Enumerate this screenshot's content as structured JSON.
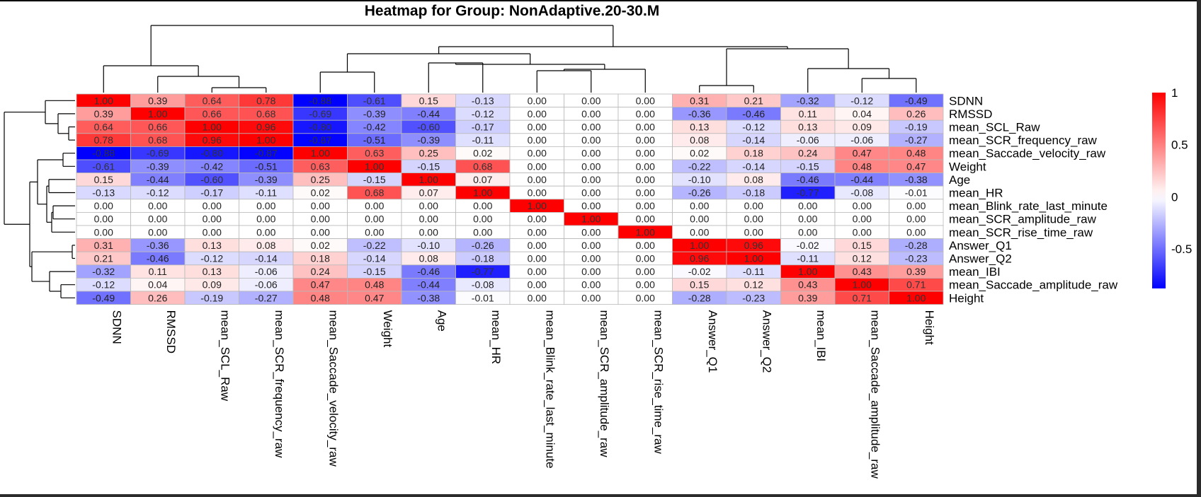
{
  "title": "Heatmap for Group: NonAdaptive.20-30.M",
  "chart_data": {
    "type": "heatmap",
    "title": "Heatmap for Group: NonAdaptive.20-30.M",
    "columns": [
      "SDNN",
      "RMSSD",
      "mean_SCL_Raw",
      "mean_SCR_frequency_raw",
      "mean_Saccade_velocity_raw",
      "Weight",
      "Age",
      "mean_HR",
      "mean_Blink_rate_last_minute",
      "mean_SCR_amplitude_raw",
      "mean_SCR_rise_time_raw",
      "Answer_Q1",
      "Answer_Q2",
      "mean_IBI",
      "mean_Saccade_amplitude_raw",
      "Height"
    ],
    "rows": [
      "SDNN",
      "RMSSD",
      "mean_SCL_Raw",
      "mean_SCR_frequency_raw",
      "mean_Saccade_velocity_raw",
      "Weight",
      "Age",
      "mean_HR",
      "mean_Blink_rate_last_minute",
      "mean_SCR_amplitude_raw",
      "mean_SCR_rise_time_raw",
      "Answer_Q1",
      "Answer_Q2",
      "mean_IBI",
      "mean_Saccade_amplitude_raw",
      "Height"
    ],
    "values": [
      [
        "1.00",
        "0.39",
        "0.64",
        "0.78",
        "-0.88",
        "-0.61",
        "0.15",
        "-0.13",
        "0.00",
        "0.00",
        "0.00",
        "0.31",
        "0.21",
        "-0.32",
        "-0.12",
        "-0.49"
      ],
      [
        "0.39",
        "1.00",
        "0.66",
        "0.68",
        "-0.69",
        "-0.39",
        "-0.44",
        "-0.12",
        "0.00",
        "0.00",
        "0.00",
        "-0.36",
        "-0.46",
        "0.11",
        "0.04",
        "0.26"
      ],
      [
        "0.64",
        "0.66",
        "1.00",
        "0.96",
        "-0.80",
        "-0.42",
        "-0.60",
        "-0.17",
        "0.00",
        "0.00",
        "0.00",
        "0.13",
        "-0.12",
        "0.13",
        "0.09",
        "-0.19"
      ],
      [
        "0.78",
        "0.68",
        "0.96",
        "1.00",
        "-0.87",
        "-0.51",
        "-0.39",
        "-0.11",
        "0.00",
        "0.00",
        "0.00",
        "0.08",
        "-0.14",
        "-0.06",
        "-0.06",
        "-0.27"
      ],
      [
        "-0.88",
        "-0.69",
        "-0.80",
        "-0.87",
        "1.00",
        "0.63",
        "0.25",
        "0.02",
        "0.00",
        "0.00",
        "0.00",
        "0.02",
        "0.18",
        "0.24",
        "0.47",
        "0.48"
      ],
      [
        "-0.61",
        "-0.39",
        "-0.42",
        "-0.51",
        "0.63",
        "1.00",
        "-0.15",
        "0.68",
        "0.00",
        "0.00",
        "0.00",
        "-0.22",
        "-0.14",
        "-0.15",
        "0.48",
        "0.47"
      ],
      [
        "0.15",
        "-0.44",
        "-0.60",
        "-0.39",
        "0.25",
        "-0.15",
        "1.00",
        "0.07",
        "0.00",
        "0.00",
        "0.00",
        "-0.10",
        "0.08",
        "-0.46",
        "-0.44",
        "-0.38"
      ],
      [
        "-0.13",
        "-0.12",
        "-0.17",
        "-0.11",
        "0.02",
        "0.68",
        "0.07",
        "1.00",
        "0.00",
        "0.00",
        "0.00",
        "-0.26",
        "-0.18",
        "-0.77",
        "-0.08",
        "-0.01"
      ],
      [
        "0.00",
        "0.00",
        "0.00",
        "0.00",
        "0.00",
        "0.00",
        "0.00",
        "0.00",
        "1.00",
        "0.00",
        "0.00",
        "0.00",
        "0.00",
        "0.00",
        "0.00",
        "0.00"
      ],
      [
        "0.00",
        "0.00",
        "0.00",
        "0.00",
        "0.00",
        "0.00",
        "0.00",
        "0.00",
        "0.00",
        "1.00",
        "0.00",
        "0.00",
        "0.00",
        "0.00",
        "0.00",
        "0.00"
      ],
      [
        "0.00",
        "0.00",
        "0.00",
        "0.00",
        "0.00",
        "0.00",
        "0.00",
        "0.00",
        "0.00",
        "0.00",
        "1.00",
        "0.00",
        "0.00",
        "0.00",
        "0.00",
        "0.00"
      ],
      [
        "0.31",
        "-0.36",
        "0.13",
        "0.08",
        "0.02",
        "-0.22",
        "-0.10",
        "-0.26",
        "0.00",
        "0.00",
        "0.00",
        "1.00",
        "0.96",
        "-0.02",
        "0.15",
        "-0.28"
      ],
      [
        "0.21",
        "-0.46",
        "-0.12",
        "-0.14",
        "0.18",
        "-0.14",
        "0.08",
        "-0.18",
        "0.00",
        "0.00",
        "0.00",
        "0.96",
        "1.00",
        "-0.11",
        "0.12",
        "-0.23"
      ],
      [
        "-0.32",
        "0.11",
        "0.13",
        "-0.06",
        "0.24",
        "-0.15",
        "-0.46",
        "-0.77",
        "0.00",
        "0.00",
        "0.00",
        "-0.02",
        "-0.11",
        "1.00",
        "0.43",
        "0.39"
      ],
      [
        "-0.12",
        "0.04",
        "0.09",
        "-0.06",
        "0.47",
        "0.48",
        "-0.44",
        "-0.08",
        "0.00",
        "0.00",
        "0.00",
        "0.15",
        "0.12",
        "0.43",
        "1.00",
        "0.71"
      ],
      [
        "-0.49",
        "0.26",
        "-0.19",
        "-0.27",
        "0.48",
        "0.47",
        "-0.38",
        "-0.01",
        "0.00",
        "0.00",
        "0.00",
        "-0.28",
        "-0.23",
        "0.39",
        "0.71",
        "1.00"
      ]
    ],
    "legend": {
      "ticks": [
        "1",
        "0.5",
        "0",
        "-0.5"
      ],
      "tick_values": [
        1,
        0.5,
        0,
        -0.5
      ],
      "range": [
        -0.88,
        1.0
      ],
      "low_color": "#0000ff",
      "mid_color": "#ffffff",
      "high_color": "#ff0000",
      "placement": "right"
    },
    "dendrograms": {
      "columns": "top",
      "rows": "left"
    }
  }
}
